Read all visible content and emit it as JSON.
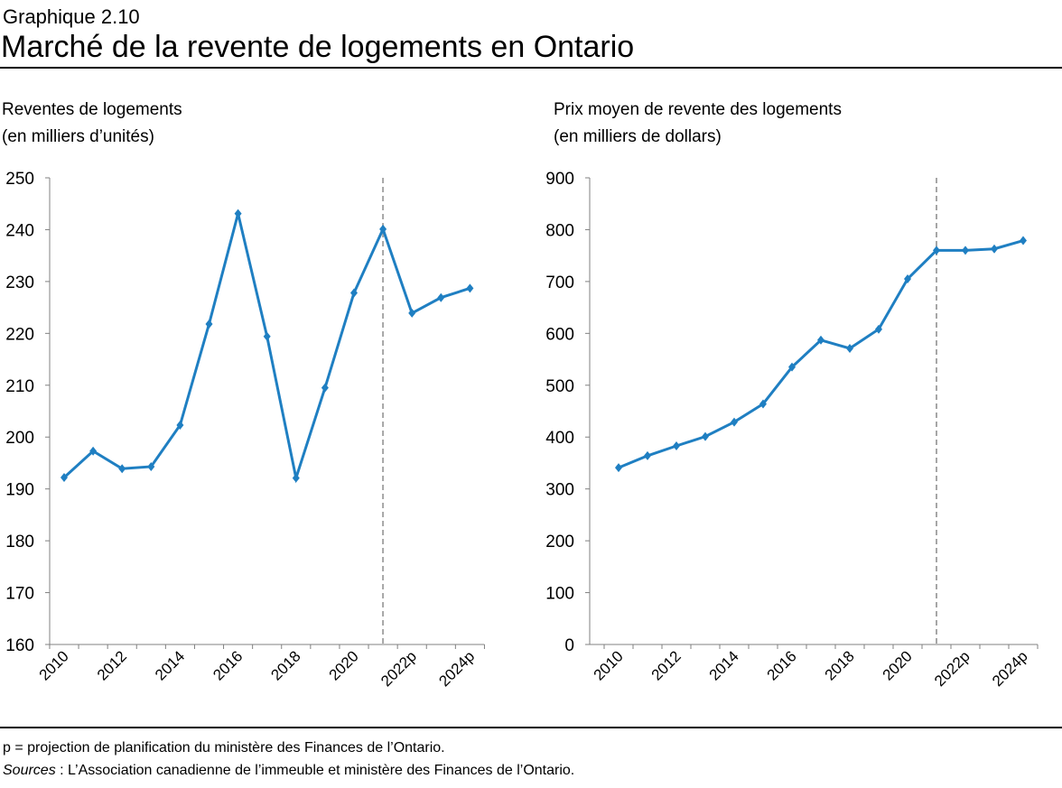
{
  "header": {
    "label": "Graphique 2.10",
    "title": "Marché de la revente de logements en Ontario"
  },
  "chart_data": [
    {
      "type": "line",
      "ylabel": [
        "Reventes de logements",
        "(en milliers d’unités)"
      ],
      "categories": [
        "2010",
        null,
        "2012",
        null,
        "2014",
        null,
        "2016",
        null,
        "2018",
        null,
        "2020",
        null,
        "2022p",
        null,
        "2024p"
      ],
      "values": [
        192.2,
        197.3,
        193.9,
        194.3,
        202.3,
        221.8,
        243.1,
        219.4,
        192.1,
        209.5,
        227.8,
        240.1,
        223.9,
        226.9,
        228.7
      ],
      "color": "#1f7fc2",
      "ylim": [
        160,
        250
      ],
      "yticks": [
        160,
        170,
        180,
        190,
        200,
        210,
        220,
        230,
        240,
        250
      ],
      "vline_index": 11
    },
    {
      "type": "line",
      "ylabel": [
        "Prix moyen de revente des logements",
        "(en milliers de dollars)"
      ],
      "categories": [
        "2010",
        null,
        "2012",
        null,
        "2014",
        null,
        "2016",
        null,
        "2018",
        null,
        "2020",
        null,
        "2022p",
        null,
        "2024p"
      ],
      "values": [
        341,
        364,
        383,
        401,
        429,
        464,
        535,
        587,
        571,
        608,
        705,
        760,
        760,
        763,
        779
      ],
      "color": "#1f7fc2",
      "ylim": [
        0,
        900
      ],
      "yticks": [
        0,
        100,
        200,
        300,
        400,
        500,
        600,
        700,
        800,
        900
      ],
      "vline_index": 11
    }
  ],
  "notes": {
    "projection": "p = projection de planification du ministère des Finances de l’Ontario.",
    "sources_label": "Sources",
    "sources_text": " : L’Association canadienne de l’immeuble et ministère des Finances de l’Ontario."
  }
}
